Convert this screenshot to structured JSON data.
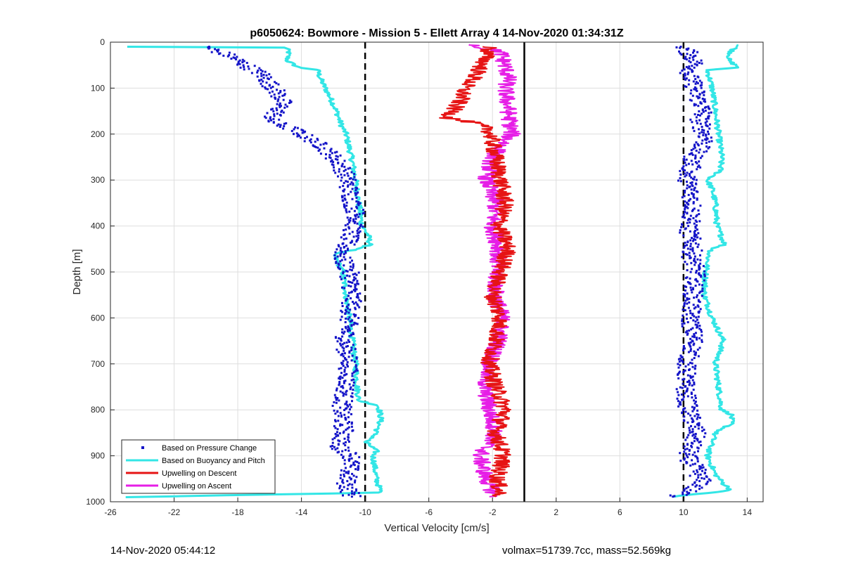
{
  "chart_data": {
    "type": "scatter",
    "title": "p6050624: Bowmore - Mission 5 - Ellett Array 4 14-Nov-2020 01:34:31Z",
    "xlabel": "Vertical Velocity [cm/s]",
    "ylabel": "Depth [m]",
    "xlim": [
      -26,
      15
    ],
    "ylim": [
      0,
      1000
    ],
    "y_reversed": true,
    "grid": true,
    "x_ticks": [
      -26,
      -22,
      -18,
      -14,
      -10,
      -6,
      -2,
      2,
      6,
      10,
      14
    ],
    "y_ticks": [
      0,
      100,
      200,
      300,
      400,
      500,
      600,
      700,
      800,
      900,
      1000
    ],
    "legend_position": "bottom-left",
    "reference_lines": [
      {
        "x": -10,
        "style": "dashed",
        "color": "#000000"
      },
      {
        "x": 10,
        "style": "dashed",
        "color": "#000000"
      },
      {
        "x": 0,
        "style": "solid",
        "color": "#000000"
      }
    ],
    "series": [
      {
        "name": "Based on Pressure Change",
        "color": "#1414c8",
        "marker": "dot",
        "dive": {
          "depth": [
            10,
            30,
            50,
            70,
            90,
            110,
            130,
            150,
            170,
            190,
            210,
            230,
            250,
            270,
            290,
            320,
            350,
            380,
            410,
            440,
            470,
            500,
            550,
            600,
            650,
            700,
            750,
            800,
            850,
            880,
            900,
            930,
            960,
            990
          ],
          "velocity": [
            -20,
            -18.5,
            -17.5,
            -16.5,
            -16,
            -15.5,
            -15.2,
            -15.5,
            -16,
            -14.5,
            -13.5,
            -12.5,
            -12,
            -11.5,
            -11.2,
            -11,
            -10.8,
            -10.5,
            -10.8,
            -11.2,
            -11.5,
            -11,
            -10.8,
            -11,
            -11.3,
            -11,
            -11.2,
            -11.5,
            -11.3,
            -11.7,
            -10.8,
            -11,
            -11.2,
            -10.8
          ]
        },
        "climb": {
          "depth": [
            10,
            30,
            50,
            70,
            90,
            110,
            130,
            150,
            170,
            190,
            210,
            230,
            250,
            270,
            290,
            320,
            350,
            380,
            410,
            440,
            470,
            500,
            550,
            600,
            650,
            700,
            750,
            800,
            850,
            880,
            900,
            930,
            960,
            990
          ],
          "velocity": [
            10,
            10.5,
            10.8,
            10.3,
            10.6,
            10.8,
            11,
            11.3,
            11,
            11.2,
            11.5,
            11,
            10.6,
            10.5,
            10.2,
            10.4,
            10.6,
            10.5,
            10.3,
            10.6,
            10.5,
            10.8,
            10.6,
            10.4,
            10.7,
            10.2,
            10.1,
            10.3,
            10.8,
            10.5,
            10.2,
            10.8,
            11.2,
            9.5
          ]
        }
      },
      {
        "name": "Based on Buoyancy and Pitch",
        "color": "#33e6e6",
        "marker": "line",
        "dive": {
          "depth": [
            10,
            12,
            20,
            40,
            55,
            60,
            80,
            100,
            120,
            150,
            180,
            200,
            230,
            260,
            300,
            350,
            400,
            420,
            440,
            450,
            460,
            500,
            550,
            600,
            650,
            700,
            750,
            780,
            790,
            800,
            820,
            840,
            860,
            870,
            880,
            890,
            900,
            950,
            980,
            990
          ],
          "velocity": [
            -25,
            -15,
            -14.8,
            -14.9,
            -14.2,
            -13,
            -12.8,
            -12.5,
            -12.2,
            -11.8,
            -11.5,
            -11.2,
            -11,
            -10.8,
            -10.6,
            -10.4,
            -10.2,
            -9.8,
            -9.7,
            -10.4,
            -12,
            -11.4,
            -11.2,
            -11,
            -10.8,
            -10.6,
            -10.5,
            -10.4,
            -9.2,
            -9.1,
            -9,
            -9.2,
            -9.5,
            -10,
            -9.6,
            -9.3,
            -9.5,
            -9.3,
            -9,
            -25
          ]
        },
        "climb": {
          "depth": [
            5,
            20,
            40,
            55,
            60,
            100,
            150,
            200,
            250,
            280,
            300,
            320,
            350,
            400,
            440,
            450,
            460,
            500,
            550,
            600,
            650,
            700,
            750,
            800,
            810,
            830,
            850,
            900,
            940,
            960,
            975,
            990
          ],
          "velocity": [
            13.5,
            13,
            12.8,
            13.5,
            11.5,
            11.8,
            12,
            12.2,
            12.4,
            12.3,
            11.5,
            11.8,
            12,
            12.1,
            12.6,
            11.8,
            11.6,
            11.4,
            11.3,
            11.8,
            12.5,
            12,
            12.2,
            12.4,
            13,
            13,
            12,
            11.5,
            12,
            12.5,
            13,
            9
          ]
        }
      },
      {
        "name": "Upwelling on Descent",
        "color": "#e61414",
        "marker": "line",
        "depth": [
          10,
          40,
          80,
          100,
          120,
          150,
          165,
          175,
          190,
          220,
          250,
          300,
          350,
          400,
          450,
          500,
          550,
          600,
          650,
          700,
          750,
          800,
          850,
          900,
          950,
          990
        ],
        "velocity": [
          -2.2,
          -2.5,
          -3.2,
          -3.8,
          -3.9,
          -4.5,
          -4.8,
          -3.2,
          -2.2,
          -2,
          -1.8,
          -1.5,
          -1.2,
          -1.6,
          -1,
          -1.5,
          -2,
          -1.5,
          -1.8,
          -2.2,
          -1.8,
          -1.2,
          -1.8,
          -1.3,
          -1.7,
          -1.5
        ]
      },
      {
        "name": "Upwelling on Ascent",
        "color": "#e61ee6",
        "marker": "line",
        "depth": [
          5,
          10,
          20,
          50,
          80,
          100,
          150,
          200,
          250,
          300,
          350,
          400,
          450,
          500,
          550,
          600,
          650,
          700,
          750,
          800,
          850,
          900,
          950,
          990
        ],
        "velocity": [
          -3,
          -3,
          -1.5,
          -1.2,
          -1,
          -1.2,
          -1,
          -0.8,
          -2,
          -2.4,
          -1.8,
          -2,
          -1.6,
          -1.8,
          -1.8,
          -1.4,
          -1.6,
          -2.2,
          -2.5,
          -2.2,
          -1.8,
          -2.8,
          -2.4,
          -1.8
        ]
      }
    ],
    "legend": [
      "Based on Pressure Change",
      "Based on Buoyancy and Pitch",
      "Upwelling on Descent",
      "Upwelling on Ascent"
    ]
  },
  "footer": {
    "left": "14-Nov-2020 05:44:12",
    "right": "volmax=51739.7cc, mass=52.569kg"
  }
}
